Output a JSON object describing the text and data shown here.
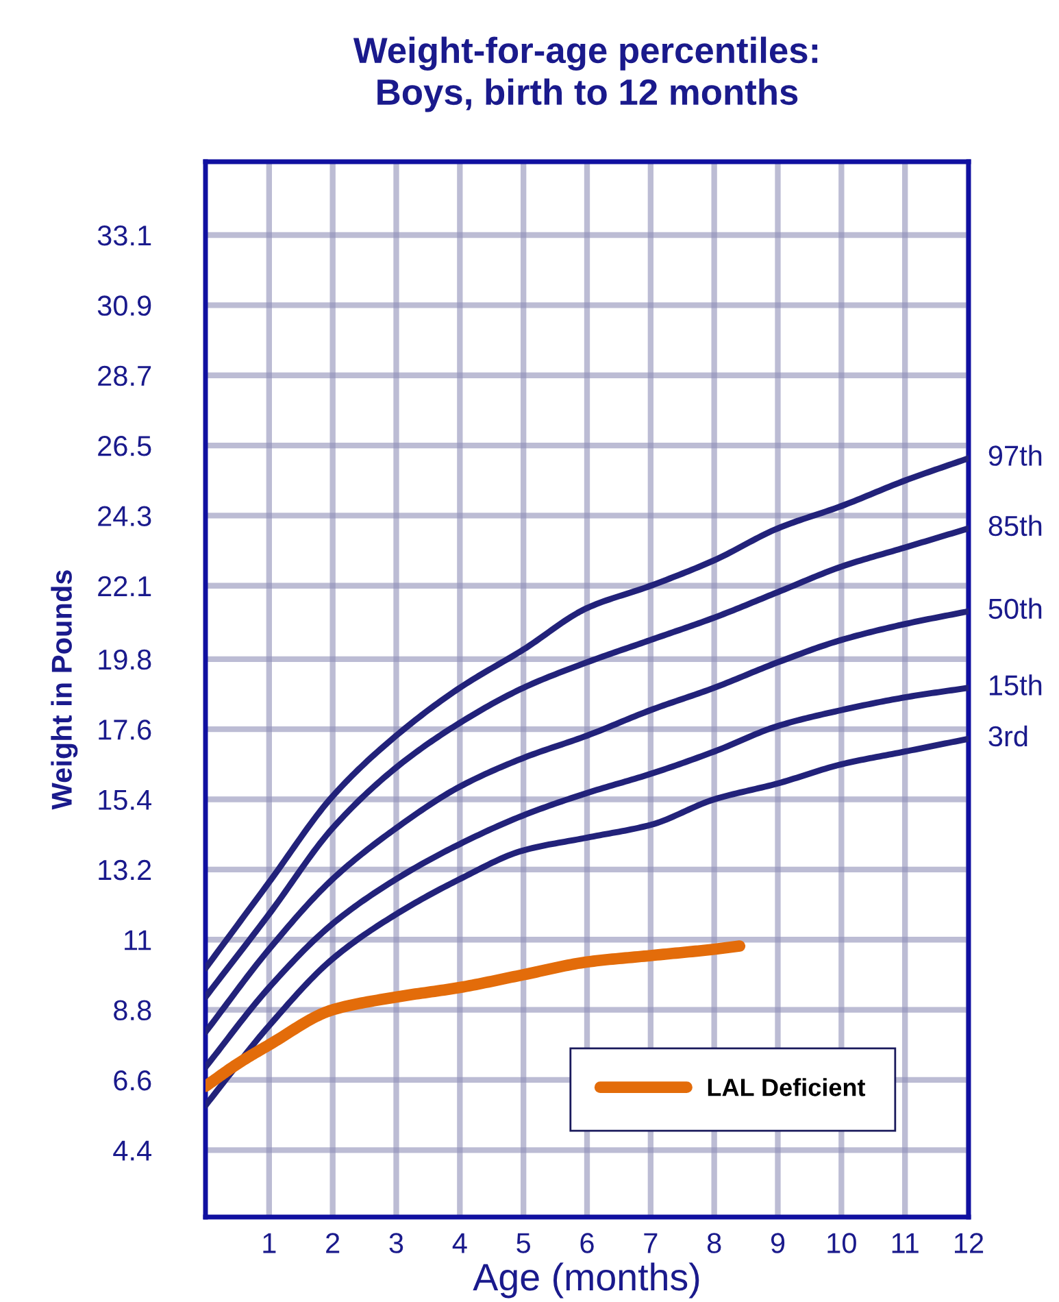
{
  "chart_data": {
    "type": "line",
    "title": "Weight-for-age percentiles:\nBoys, birth to 12 months",
    "xlabel": "Age (months)",
    "ylabel": "Weight in Pounds",
    "x": [
      0,
      1,
      2,
      3,
      4,
      5,
      6,
      7,
      8,
      9,
      10,
      11,
      12
    ],
    "series": [
      {
        "color": "#22227a",
        "values": [
          10.1,
          12.8,
          15.5,
          17.4,
          18.9,
          20.1,
          21.4,
          22.1,
          22.9,
          23.9,
          24.6,
          25.4,
          26.1
        ]
      },
      {
        "color": "#22227a",
        "values": [
          9.2,
          11.8,
          14.5,
          16.4,
          17.8,
          18.9,
          19.7,
          20.4,
          21.1,
          21.9,
          22.7,
          23.3,
          23.9
        ]
      },
      {
        "color": "#22227a",
        "values": [
          8.1,
          10.7,
          12.9,
          14.5,
          15.8,
          16.7,
          17.4,
          18.2,
          18.9,
          19.7,
          20.4,
          20.9,
          21.3
        ]
      },
      {
        "color": "#22227a",
        "values": [
          7.0,
          9.5,
          11.5,
          12.9,
          14.0,
          14.9,
          15.6,
          16.2,
          16.9,
          17.7,
          18.2,
          18.6,
          18.9
        ]
      },
      {
        "color": "#22227a",
        "values": [
          5.8,
          8.3,
          10.4,
          11.8,
          12.9,
          13.8,
          14.2,
          14.6,
          15.4,
          15.9,
          16.5,
          16.9,
          17.3
        ]
      },
      {
        "name": "LAL Deficient",
        "color": "#e36c0a",
        "x": [
          0,
          0.5,
          1,
          2,
          3,
          4,
          5,
          6,
          7,
          8,
          8.4
        ],
        "values": [
          6.4,
          7.1,
          7.7,
          8.8,
          9.2,
          9.5,
          9.9,
          10.3,
          10.5,
          10.7,
          10.8
        ]
      }
    ],
    "annotations": [
      "97th",
      "85th",
      "50th",
      "15th",
      "3rd"
    ],
    "xlim": [
      0,
      12
    ],
    "xticks": [
      1,
      2,
      3,
      4,
      5,
      6,
      7,
      8,
      9,
      10,
      11,
      12
    ],
    "ylim": [
      2.3,
      35.4
    ],
    "yticks": [
      4.4,
      6.6,
      8.8,
      11,
      13.2,
      15.4,
      17.6,
      19.8,
      22.1,
      24.3,
      26.5,
      28.7,
      30.9,
      33.1
    ],
    "grid": true,
    "legend": "bottom right",
    "marker": "none",
    "line_style": "solid"
  }
}
